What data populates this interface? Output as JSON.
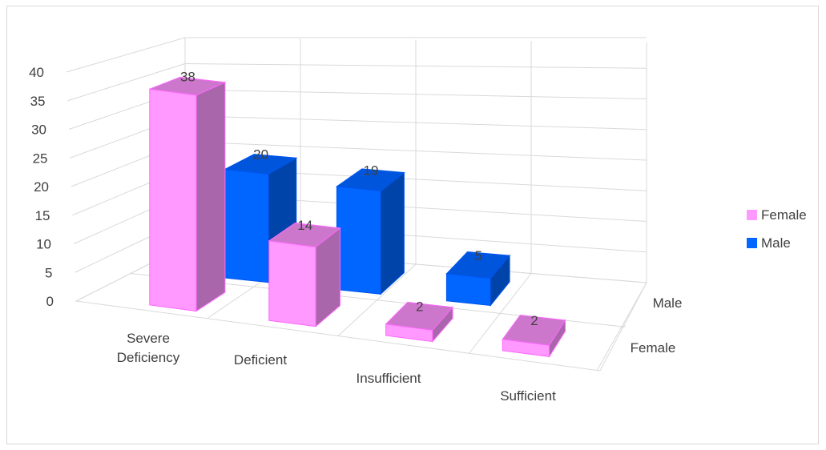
{
  "chart_data": {
    "type": "bar",
    "subtype": "3d-column",
    "categories": [
      "Severe Deficiency",
      "Deficient",
      "Insufficient",
      "Sufficient"
    ],
    "category_lines": [
      [
        "Severe",
        "Deficiency"
      ],
      [
        "Deficient"
      ],
      [
        "Insufficient"
      ],
      [
        "Sufficient"
      ]
    ],
    "series": [
      {
        "name": "Female",
        "values": [
          38,
          14,
          2,
          2
        ],
        "color": "#ff99ff"
      },
      {
        "name": "Male",
        "values": [
          20,
          19,
          5,
          0
        ],
        "color": "#0066ff"
      }
    ],
    "data_labels": [
      {
        "series": 0,
        "index": 0,
        "text": "38"
      },
      {
        "series": 0,
        "index": 1,
        "text": "14"
      },
      {
        "series": 0,
        "index": 2,
        "text": "2"
      },
      {
        "series": 0,
        "index": 3,
        "text": "2"
      },
      {
        "series": 1,
        "index": 0,
        "text": "20"
      },
      {
        "series": 1,
        "index": 1,
        "text": "19"
      },
      {
        "series": 1,
        "index": 2,
        "text": "5"
      }
    ],
    "ylim": [
      0,
      40
    ],
    "yticks": [
      "0",
      "5",
      "10",
      "15",
      "20",
      "25",
      "30",
      "35",
      "40"
    ],
    "depth_axis_labels": [
      "Male",
      "Female"
    ],
    "legend": {
      "position": "right",
      "entries": [
        "Female",
        "Male"
      ]
    },
    "grid": true,
    "title": "",
    "xlabel": "",
    "ylabel": ""
  },
  "colors": {
    "gridline": "#d9d9d9",
    "female_front": "#ff99ff",
    "female_side": "#aa66aa",
    "female_top": "#cc77cc",
    "male_front": "#0066ff",
    "male_side": "#0044aa",
    "male_top": "#0055dd"
  }
}
